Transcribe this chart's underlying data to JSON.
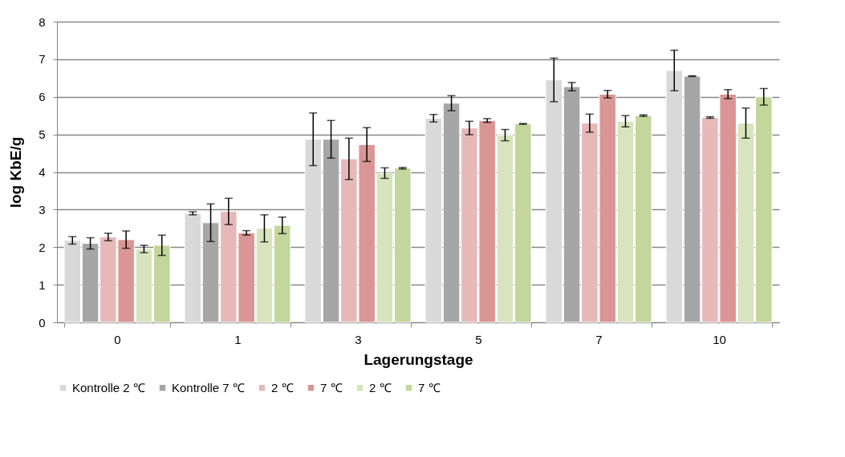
{
  "chart_data": {
    "type": "bar",
    "xlabel": "Lagerungstage",
    "ylabel": "log KbE/g",
    "categories": [
      "0",
      "1",
      "3",
      "5",
      "7",
      "10"
    ],
    "series": [
      {
        "name": "Kontrolle 2 ℃",
        "color": "#d9d9d9",
        "values": [
          2.18,
          2.9,
          4.87,
          5.43,
          6.45,
          6.7
        ],
        "errors": [
          0.1,
          0.04,
          0.7,
          0.1,
          0.58,
          0.54
        ]
      },
      {
        "name": "Kontrolle 7 ℃",
        "color": "#a6a6a6",
        "values": [
          2.1,
          2.65,
          4.87,
          5.83,
          6.27,
          6.55
        ],
        "errors": [
          0.15,
          0.5,
          0.5,
          0.2,
          0.11,
          0.01
        ]
      },
      {
        "name": "2 ℃",
        "color": "#e6b9b8",
        "values": [
          2.27,
          2.95,
          4.35,
          5.17,
          5.3,
          5.45
        ],
        "errors": [
          0.1,
          0.35,
          0.55,
          0.18,
          0.24,
          0.02
        ]
      },
      {
        "name": "7 ℃",
        "color": "#d99694",
        "values": [
          2.2,
          2.38,
          4.73,
          5.37,
          6.07,
          6.07
        ],
        "errors": [
          0.23,
          0.06,
          0.45,
          0.05,
          0.1,
          0.12
        ]
      },
      {
        "name": "2 ℃",
        "color": "#d7e4bd",
        "values": [
          1.95,
          2.5,
          3.97,
          4.98,
          5.35,
          5.3
        ],
        "errors": [
          0.1,
          0.36,
          0.14,
          0.15,
          0.15,
          0.4
        ]
      },
      {
        "name": "7 ℃",
        "color": "#c3d69b",
        "values": [
          2.05,
          2.58,
          4.1,
          5.28,
          5.5,
          6.0
        ],
        "errors": [
          0.27,
          0.22,
          0.02,
          0.01,
          0.02,
          0.22
        ]
      }
    ],
    "ylim": [
      0,
      8
    ],
    "yticks": [
      0,
      1,
      2,
      3,
      4,
      5,
      6,
      7,
      8
    ],
    "grid": "y",
    "legend": "bottom"
  }
}
